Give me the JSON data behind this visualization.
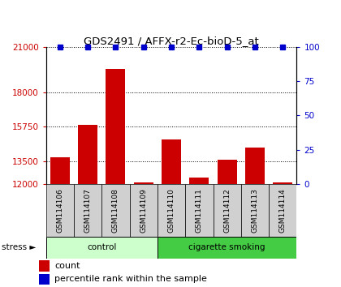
{
  "title": "GDS2491 / AFFX-r2-Ec-bioD-5_at",
  "samples": [
    "GSM114106",
    "GSM114107",
    "GSM114108",
    "GSM114109",
    "GSM114110",
    "GSM114111",
    "GSM114112",
    "GSM114113",
    "GSM114114"
  ],
  "counts": [
    13750,
    15900,
    19600,
    12100,
    14900,
    12400,
    13600,
    14400,
    12100
  ],
  "percentile_ranks": [
    100,
    100,
    100,
    100,
    100,
    100,
    100,
    100,
    100
  ],
  "bar_color": "#cc0000",
  "dot_color": "#0000cc",
  "ylim_left": [
    12000,
    21000
  ],
  "ylim_right": [
    0,
    100
  ],
  "yticks_left": [
    12000,
    13500,
    15750,
    18000,
    21000
  ],
  "yticks_right": [
    0,
    25,
    50,
    75,
    100
  ],
  "groups": [
    {
      "label": "control",
      "start": 0,
      "end": 4,
      "color_light": "#ccffcc",
      "color_dark": "#44cc44"
    },
    {
      "label": "cigarette smoking",
      "start": 4,
      "end": 9,
      "color_light": "#44cc44",
      "color_dark": "#44cc44"
    }
  ],
  "stress_label": "stress",
  "legend_count_label": "count",
  "legend_pct_label": "percentile rank within the sample",
  "tick_area_color": "#cccccc"
}
